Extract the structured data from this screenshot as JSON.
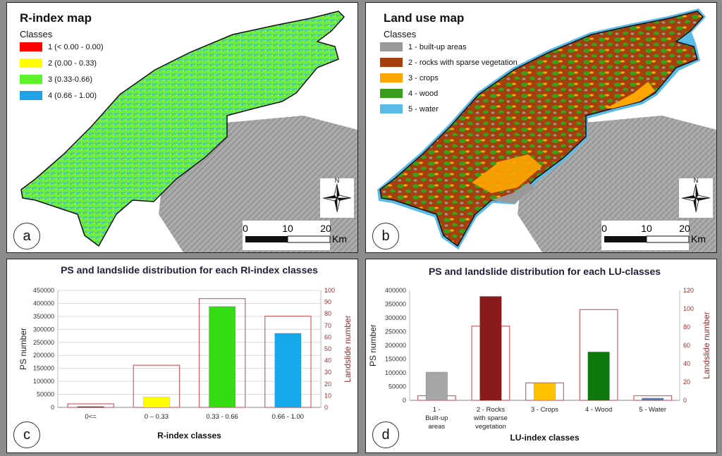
{
  "panels": {
    "a": {
      "letter": "a",
      "title": "R-index map",
      "legend_title": "Classes",
      "legend": [
        {
          "label": "1 (< 0.00 - 0.00)",
          "color": "#ff0000"
        },
        {
          "label": "2 (0.00 - 0.33)",
          "color": "#ffff00"
        },
        {
          "label": "3 (0.33-0.66)",
          "color": "#5ef22a"
        },
        {
          "label": "4 (0.66 - 1.00)",
          "color": "#1fa2e6"
        }
      ],
      "scale": {
        "ticks": [
          "0",
          "10",
          "20"
        ],
        "unit": "Km"
      },
      "north": "N"
    },
    "b": {
      "letter": "b",
      "title": "Land use map",
      "legend_title": "Classes",
      "legend": [
        {
          "label": "1 - built-up areas",
          "color": "#999999"
        },
        {
          "label": "2 - rocks with sparse vegetation",
          "color": "#a53f0e"
        },
        {
          "label": "3 - crops",
          "color": "#ffa500"
        },
        {
          "label": "4 - wood",
          "color": "#3a9e1c"
        },
        {
          "label": "5 - water",
          "color": "#5bbbe8"
        }
      ],
      "scale": {
        "ticks": [
          "0",
          "10",
          "20"
        ],
        "unit": "Km"
      },
      "north": "N"
    },
    "c": {
      "letter": "c"
    },
    "d": {
      "letter": "d"
    }
  },
  "chart_data": [
    {
      "type": "bar",
      "title": "PS and landslide distribution for each RI-index classes",
      "xlabel": "R-index classes",
      "ylabel": "PS number",
      "y2label": "Landslide number",
      "categories": [
        "0<=",
        "0 – 0.33",
        "0.33 - 0.66",
        "0.66 - 1.00"
      ],
      "ylim": [
        0,
        450000
      ],
      "y_ticks": [
        "0",
        "50000",
        "100000",
        "150000",
        "200000",
        "250000",
        "300000",
        "350000",
        "400000",
        "450000"
      ],
      "y2lim": [
        0,
        100
      ],
      "y2_ticks": [
        "0",
        "10",
        "20",
        "30",
        "40",
        "50",
        "60",
        "70",
        "80",
        "90",
        "100"
      ],
      "ps_values": [
        3000,
        40000,
        388000,
        285000
      ],
      "ps_colors": [
        "#c00000",
        "#ffff00",
        "#33dd11",
        "#18a8ee"
      ],
      "landslide_values": [
        3,
        36,
        93,
        78
      ],
      "grid": true
    },
    {
      "type": "bar",
      "title": "PS  and landslide distribution for each LU-classes",
      "xlabel": "LU-index classes",
      "ylabel": "PS number",
      "y2label": "Landslide number",
      "categories": [
        "1 - Built-up areas",
        "2 - Rocks  with sparse vegetation",
        "3 - Crops",
        "4 - Wood",
        "5 - Water"
      ],
      "ylim": [
        0,
        400000
      ],
      "y_ticks": [
        "0",
        "50000",
        "100000",
        "150000",
        "200000",
        "250000",
        "300000",
        "350000",
        "400000"
      ],
      "y2lim": [
        0,
        120
      ],
      "y2_ticks": [
        "0",
        "20",
        "40",
        "60",
        "80",
        "100",
        "120"
      ],
      "ps_values": [
        103000,
        378000,
        63000,
        176000,
        8000
      ],
      "ps_colors": [
        "#a6a6a6",
        "#8b1a1a",
        "#ffc000",
        "#0e7a0e",
        "#4f81bd"
      ],
      "landslide_values": [
        5,
        81,
        19,
        99,
        5
      ],
      "grid": false
    }
  ]
}
